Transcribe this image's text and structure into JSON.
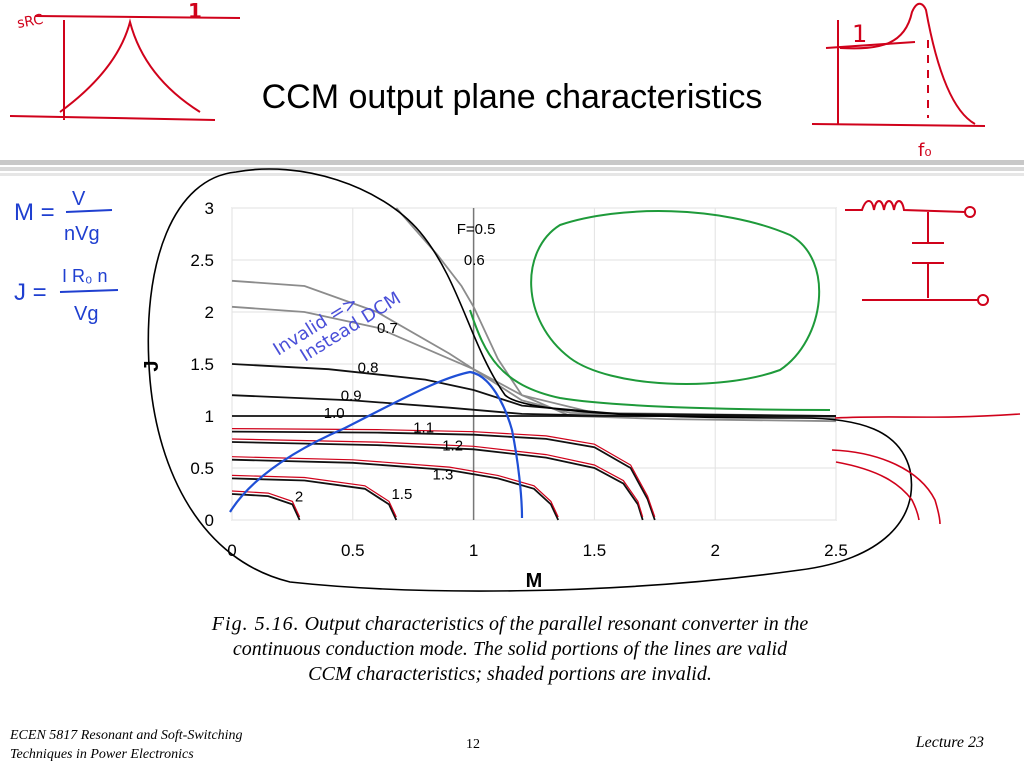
{
  "slide": {
    "title": "CCM output plane characteristics",
    "caption_fig": "Fig. 5.16.",
    "caption_line1": "Output characteristics of the parallel resonant converter in the",
    "caption_line2": "continuous conduction mode. The solid portions of the lines are valid",
    "caption_line3": "CCM characteristics; shaded portions are invalid.",
    "footer_left_line1": "ECEN 5817  Resonant and Soft-Switching",
    "footer_left_line2": "Techniques in Power Electronics",
    "footer_center": "12",
    "footer_right": "Lecture 23"
  },
  "annotations": {
    "src_label": "sRC",
    "src_peak_label": "1",
    "prc_peak_label": "1",
    "f0_label": "f₀",
    "m_def_lhs": "M =",
    "m_def_num": "V",
    "m_def_den": "nVg",
    "j_def_lhs": "J =",
    "j_def_num": "I R₀ n",
    "j_def_den": "Vg",
    "invalid_note_line1": "Invalid =>",
    "invalid_note_line2": "Instead DCM"
  },
  "colors": {
    "ink_red": "#d0021b",
    "ink_blue": "#1f4fd6",
    "ink_green": "#1e9a3a",
    "invalid_gray": "#8c8c8c",
    "curve_black": "#111111",
    "rule_gray": "#b8b8b8"
  },
  "chart_data": {
    "type": "line",
    "xlabel": "M",
    "ylabel": "J",
    "xlim": [
      0,
      2.5
    ],
    "ylim": [
      0,
      3
    ],
    "x_ticks": [
      "0",
      "0.5",
      "1",
      "1.5",
      "2",
      "2.5"
    ],
    "y_ticks": [
      "0",
      "0.5",
      "1",
      "1.5",
      "2",
      "2.5",
      "3"
    ],
    "grid": true,
    "series": [
      {
        "name": "F=0.5",
        "label_at": [
          0.93,
          2.75
        ],
        "points": [
          [
            0.68,
            3.0
          ],
          [
            0.85,
            2.55
          ],
          [
            0.95,
            2.25
          ],
          [
            1.0,
            2.05
          ],
          [
            1.1,
            1.55
          ],
          [
            1.2,
            1.2
          ],
          [
            1.4,
            1.0
          ],
          [
            1.8,
            0.97
          ],
          [
            2.5,
            0.95
          ]
        ]
      },
      {
        "name": "0.6",
        "label_at": [
          0.96,
          2.45
        ],
        "points": [
          [
            0.0,
            2.3
          ],
          [
            0.3,
            2.25
          ],
          [
            0.6,
            2.0
          ],
          [
            0.9,
            1.6
          ],
          [
            1.0,
            1.45
          ],
          [
            1.2,
            1.15
          ],
          [
            1.4,
            1.03
          ],
          [
            2.0,
            1.0
          ],
          [
            2.5,
            0.98
          ]
        ]
      },
      {
        "name": "0.7",
        "label_at": [
          0.6,
          1.8
        ],
        "points": [
          [
            0.0,
            2.05
          ],
          [
            0.3,
            2.0
          ],
          [
            0.6,
            1.85
          ],
          [
            0.9,
            1.55
          ],
          [
            1.0,
            1.45
          ],
          [
            1.2,
            1.2
          ],
          [
            1.5,
            1.03
          ],
          [
            2.5,
            1.0
          ]
        ]
      },
      {
        "name": "0.8",
        "label_at": [
          0.52,
          1.42
        ],
        "points": [
          [
            0.0,
            1.5
          ],
          [
            0.4,
            1.45
          ],
          [
            0.8,
            1.35
          ],
          [
            1.0,
            1.25
          ],
          [
            1.2,
            1.1
          ],
          [
            1.6,
            1.02
          ],
          [
            2.5,
            1.0
          ]
        ]
      },
      {
        "name": "0.9",
        "label_at": [
          0.45,
          1.15
        ],
        "points": [
          [
            0.0,
            1.2
          ],
          [
            0.5,
            1.15
          ],
          [
            0.9,
            1.08
          ],
          [
            1.2,
            1.02
          ],
          [
            1.6,
            1.0
          ],
          [
            2.5,
            1.0
          ]
        ]
      },
      {
        "name": "1.0",
        "label_at": [
          0.38,
          0.98
        ],
        "points": [
          [
            0.0,
            1.0
          ],
          [
            2.5,
            1.0
          ]
        ]
      },
      {
        "name": "1.1",
        "label_at": [
          0.75,
          0.84
        ],
        "points": [
          [
            0.0,
            0.85
          ],
          [
            0.6,
            0.84
          ],
          [
            1.0,
            0.82
          ],
          [
            1.3,
            0.78
          ],
          [
            1.5,
            0.7
          ],
          [
            1.65,
            0.5
          ],
          [
            1.72,
            0.2
          ],
          [
            1.75,
            0.0
          ]
        ]
      },
      {
        "name": "1.2",
        "label_at": [
          0.87,
          0.67
        ],
        "points": [
          [
            0.0,
            0.75
          ],
          [
            0.6,
            0.72
          ],
          [
            1.0,
            0.68
          ],
          [
            1.3,
            0.6
          ],
          [
            1.5,
            0.5
          ],
          [
            1.62,
            0.35
          ],
          [
            1.68,
            0.15
          ],
          [
            1.7,
            0.0
          ]
        ]
      },
      {
        "name": "1.3",
        "label_at": [
          0.83,
          0.39
        ],
        "points": [
          [
            0.0,
            0.58
          ],
          [
            0.5,
            0.55
          ],
          [
            0.9,
            0.48
          ],
          [
            1.1,
            0.4
          ],
          [
            1.25,
            0.3
          ],
          [
            1.32,
            0.15
          ],
          [
            1.35,
            0.0
          ]
        ]
      },
      {
        "name": "1.5",
        "label_at": [
          0.66,
          0.2
        ],
        "points": [
          [
            0.0,
            0.4
          ],
          [
            0.3,
            0.38
          ],
          [
            0.55,
            0.3
          ],
          [
            0.65,
            0.15
          ],
          [
            0.68,
            0.0
          ]
        ]
      },
      {
        "name": "2",
        "label_at": [
          0.26,
          0.18
        ],
        "points": [
          [
            0.0,
            0.25
          ],
          [
            0.15,
            0.23
          ],
          [
            0.25,
            0.15
          ],
          [
            0.28,
            0.0
          ]
        ]
      }
    ]
  }
}
